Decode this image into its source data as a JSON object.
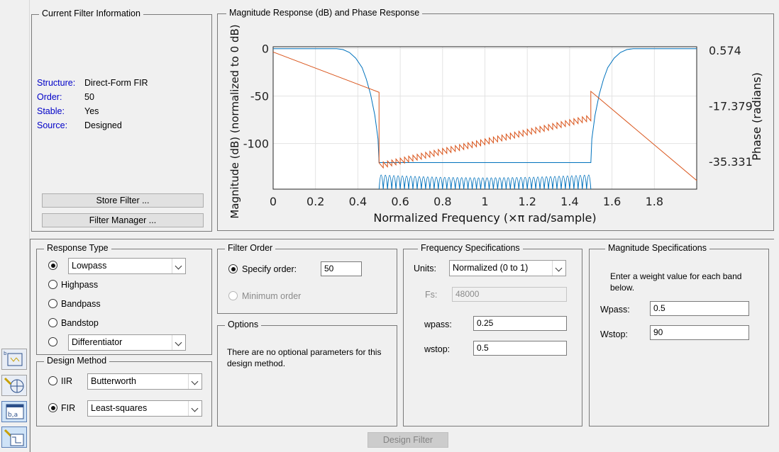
{
  "current_filter": {
    "title": "Current Filter Information",
    "rows": [
      {
        "label": "Structure:",
        "value": "Direct-Form FIR"
      },
      {
        "label": "Order:",
        "value": "50"
      },
      {
        "label": "Stable:",
        "value": "Yes"
      },
      {
        "label": "Source:",
        "value": "Designed"
      }
    ],
    "store_button": "Store Filter ...",
    "manager_button": "Filter Manager ..."
  },
  "plot": {
    "title": "Magnitude Response (dB) and Phase Response",
    "xlabel": "Normalized Frequency (×π rad/sample)",
    "ylabel_left": "Magnitude (dB) (normalized to 0 dB)",
    "ylabel_right": "Phase (radians)",
    "x_ticks": [
      "0",
      "0.2",
      "0.4",
      "0.6",
      "0.8",
      "1",
      "1.2",
      "1.4",
      "1.6",
      "1.8"
    ],
    "y_ticks_left": [
      "0",
      "-50",
      "-100"
    ],
    "y_ticks_right": [
      "0.574",
      "-17.379",
      "-35.331"
    ],
    "colors": {
      "magnitude": "#0072bd",
      "phase": "#d95319"
    }
  },
  "chart_data": {
    "type": "line",
    "xlabel": "Normalized Frequency (×π rad/sample)",
    "ylabel": "Magnitude (dB) (normalized to 0 dB)",
    "ylabel_right": "Phase (radians)",
    "xlim": [
      0,
      2
    ],
    "ylim": [
      -148,
      2
    ],
    "ylim_right": [
      -44.3,
      1.7
    ],
    "grid": true,
    "series": [
      {
        "axis": "left",
        "x": [
          0,
          0.1,
          0.2,
          0.3,
          0.33,
          0.36,
          0.39,
          0.42,
          0.44,
          0.46,
          0.48,
          0.495,
          0.5,
          1.5,
          1.505,
          1.52,
          1.54,
          1.56,
          1.58,
          1.61,
          1.64,
          1.67,
          1.7,
          1.8,
          1.9,
          2.0
        ],
        "values": [
          0,
          0,
          0,
          0,
          -1,
          -4,
          -10,
          -20,
          -32,
          -48,
          -70,
          -95,
          -120,
          -120,
          -95,
          -70,
          -48,
          -32,
          -20,
          -10,
          -4,
          -1,
          0,
          0,
          0,
          0
        ]
      },
      {
        "axis": "right",
        "x": [
          0,
          0.5,
          0.5,
          1.5,
          1.5,
          2.0
        ],
        "values": [
          0,
          -13.0,
          -35.8,
          -20.3,
          -12.7,
          -41.5
        ]
      }
    ]
  },
  "response_type": {
    "title": "Response Type",
    "selected_label": "Lowpass",
    "options": [
      "Highpass",
      "Bandpass",
      "Bandstop"
    ],
    "differentiator": "Differentiator"
  },
  "design_method": {
    "title": "Design Method",
    "iir_label": "IIR",
    "iir_value": "Butterworth",
    "fir_label": "FIR",
    "fir_value": "Least-squares"
  },
  "filter_order": {
    "title": "Filter Order",
    "specify_label": "Specify order:",
    "specify_value": "50",
    "minimum_label": "Minimum order"
  },
  "options": {
    "title": "Options",
    "text": "There are no optional parameters for this design method."
  },
  "freq_spec": {
    "title": "Frequency Specifications",
    "units_label": "Units:",
    "units_value": "Normalized (0 to 1)",
    "fs_label": "Fs:",
    "fs_value": "48000",
    "wpass_label": "wpass:",
    "wpass_value": "0.25",
    "wstop_label": "wstop:",
    "wstop_value": "0.5"
  },
  "mag_spec": {
    "title": "Magnitude Specifications",
    "text": "Enter a weight value for each band below.",
    "wpass_label": "Wpass:",
    "wpass_value": "0.5",
    "wstop_label": "Wstop:",
    "wstop_value": "90"
  },
  "design_button": "Design Filter"
}
